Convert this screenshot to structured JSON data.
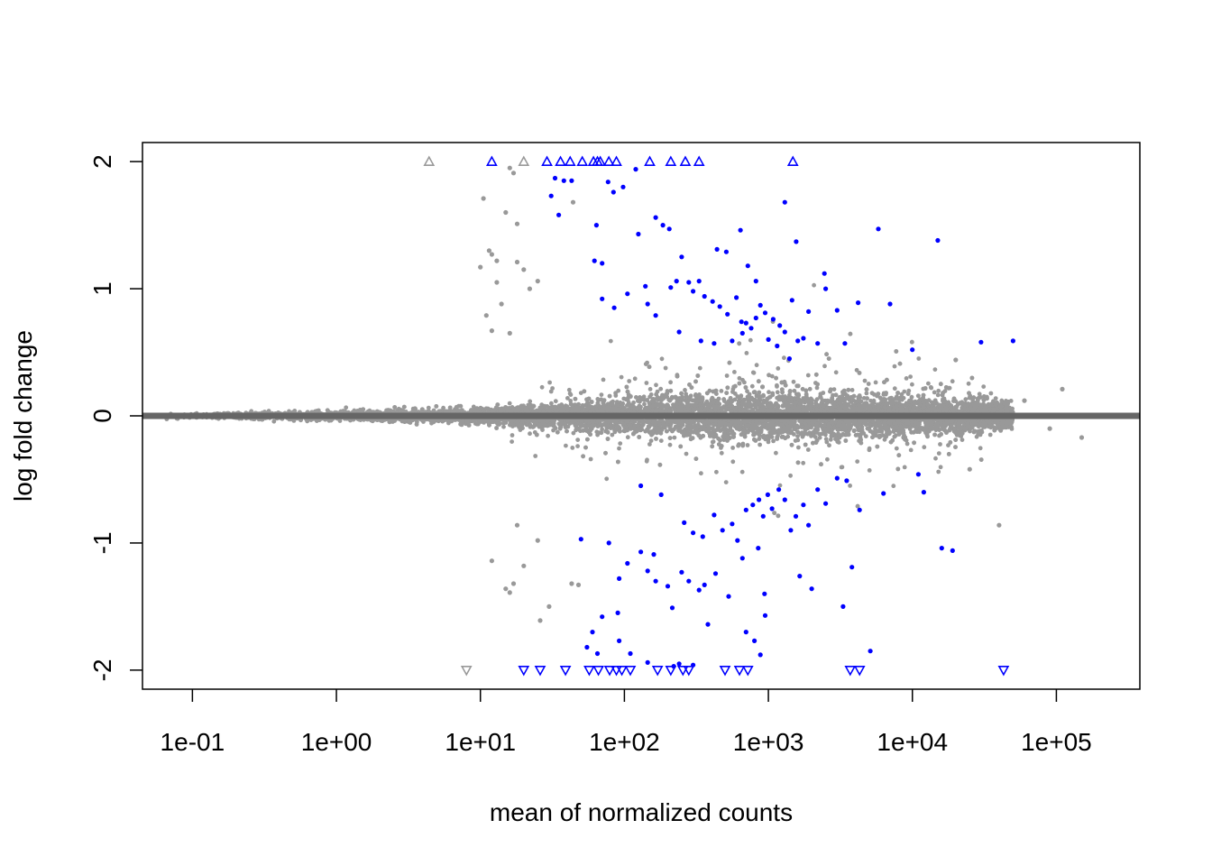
{
  "chart_data": {
    "type": "scatter",
    "xlabel": "mean of normalized counts",
    "ylabel": "log fold change",
    "x_scale": "log10",
    "xlim": [
      0.045,
      380000
    ],
    "ylim": [
      -2.15,
      2.15
    ],
    "x_ticks": [
      0.1,
      1,
      10,
      100,
      1000,
      10000,
      100000
    ],
    "x_tick_labels": [
      "1e-01",
      "1e+00",
      "1e+01",
      "1e+02",
      "1e+03",
      "1e+04",
      "1e+05"
    ],
    "y_ticks": [
      -2,
      -1,
      0,
      1,
      2
    ],
    "y_tick_labels": [
      "-2",
      "-1",
      "0",
      "1",
      "2"
    ],
    "reference_line": {
      "y": 0,
      "color": "#666666"
    },
    "colors": {
      "not_significant": "#999999",
      "significant": "#0000ff"
    },
    "grid": false,
    "series": [
      {
        "color": "#0000ff",
        "points": [
          [
            33,
            1.87
          ],
          [
            38,
            1.85
          ],
          [
            43,
            1.85
          ],
          [
            31,
            1.73
          ],
          [
            35,
            1.58
          ],
          [
            64,
            1.5
          ],
          [
            77,
            1.84
          ],
          [
            84,
            1.76
          ],
          [
            98,
            1.8
          ],
          [
            120,
            1.94
          ],
          [
            62,
            1.22
          ],
          [
            70,
            1.2
          ],
          [
            125,
            1.43
          ],
          [
            165,
            1.56
          ],
          [
            185,
            1.5
          ],
          [
            205,
            1.47
          ],
          [
            250,
            1.25
          ],
          [
            330,
            1.06
          ],
          [
            440,
            1.31
          ],
          [
            510,
            1.29
          ],
          [
            640,
            1.46
          ],
          [
            720,
            1.18
          ],
          [
            820,
            1.06
          ],
          [
            1300,
            1.68
          ],
          [
            1560,
            1.37
          ],
          [
            2450,
            1.12
          ],
          [
            5800,
            1.47
          ],
          [
            15000,
            1.38
          ],
          [
            70,
            0.92
          ],
          [
            85,
            0.85
          ],
          [
            105,
            0.96
          ],
          [
            140,
            1.02
          ],
          [
            145,
            0.88
          ],
          [
            165,
            0.79
          ],
          [
            210,
            1.01
          ],
          [
            230,
            1.06
          ],
          [
            280,
            1.05
          ],
          [
            300,
            0.98
          ],
          [
            360,
            0.94
          ],
          [
            410,
            0.9
          ],
          [
            460,
            0.86
          ],
          [
            520,
            0.8
          ],
          [
            600,
            0.93
          ],
          [
            650,
            0.74
          ],
          [
            700,
            0.73
          ],
          [
            760,
            0.69
          ],
          [
            820,
            0.77
          ],
          [
            880,
            0.87
          ],
          [
            950,
            0.81
          ],
          [
            1080,
            0.76
          ],
          [
            1200,
            0.71
          ],
          [
            1300,
            0.66
          ],
          [
            1460,
            0.91
          ],
          [
            1600,
            0.59
          ],
          [
            1750,
            0.61
          ],
          [
            1900,
            0.82
          ],
          [
            2200,
            0.57
          ],
          [
            2500,
            1.0
          ],
          [
            3000,
            0.83
          ],
          [
            3400,
            0.57
          ],
          [
            4200,
            0.89
          ],
          [
            7000,
            0.88
          ],
          [
            10000,
            0.52
          ],
          [
            30000,
            0.58
          ],
          [
            50000,
            0.59
          ],
          [
            240,
            0.66
          ],
          [
            340,
            0.59
          ],
          [
            420,
            0.57
          ],
          [
            560,
            0.59
          ],
          [
            660,
            0.65
          ],
          [
            1000,
            0.6
          ],
          [
            1150,
            0.55
          ],
          [
            1400,
            0.45
          ],
          [
            130,
            -0.55
          ],
          [
            180,
            -0.62
          ],
          [
            260,
            -0.84
          ],
          [
            300,
            -0.92
          ],
          [
            350,
            -0.95
          ],
          [
            420,
            -0.78
          ],
          [
            480,
            -0.9
          ],
          [
            560,
            -0.85
          ],
          [
            610,
            -0.98
          ],
          [
            700,
            -0.74
          ],
          [
            780,
            -0.7
          ],
          [
            860,
            -0.66
          ],
          [
            920,
            -0.79
          ],
          [
            990,
            -0.62
          ],
          [
            1060,
            -0.73
          ],
          [
            1180,
            -0.58
          ],
          [
            1300,
            -0.66
          ],
          [
            1430,
            -0.9
          ],
          [
            1550,
            -0.79
          ],
          [
            1750,
            -0.7
          ],
          [
            1900,
            -0.86
          ],
          [
            2200,
            -0.58
          ],
          [
            2500,
            -0.69
          ],
          [
            3000,
            -0.49
          ],
          [
            3500,
            -0.51
          ],
          [
            4300,
            -0.74
          ],
          [
            6300,
            -0.61
          ],
          [
            11000,
            -0.46
          ],
          [
            12000,
            -0.6
          ],
          [
            50,
            -0.97
          ],
          [
            78,
            -1.0
          ],
          [
            92,
            -1.28
          ],
          [
            105,
            -1.16
          ],
          [
            130,
            -1.07
          ],
          [
            145,
            -1.22
          ],
          [
            160,
            -1.09
          ],
          [
            165,
            -1.3
          ],
          [
            200,
            -1.34
          ],
          [
            250,
            -1.23
          ],
          [
            280,
            -1.3
          ],
          [
            330,
            -1.37
          ],
          [
            360,
            -1.33
          ],
          [
            430,
            -1.24
          ],
          [
            530,
            -1.42
          ],
          [
            660,
            -1.12
          ],
          [
            850,
            -1.04
          ],
          [
            950,
            -1.57
          ],
          [
            1650,
            -1.26
          ],
          [
            2000,
            -1.36
          ],
          [
            3800,
            -1.19
          ],
          [
            16000,
            -1.04
          ],
          [
            19000,
            -1.06
          ],
          [
            215,
            -1.51
          ],
          [
            380,
            -1.64
          ],
          [
            90,
            -1.55
          ],
          [
            70,
            -1.58
          ],
          [
            60,
            -1.7
          ],
          [
            55,
            -1.82
          ],
          [
            65,
            -1.87
          ],
          [
            92,
            -1.77
          ],
          [
            110,
            -1.87
          ],
          [
            145,
            -1.94
          ],
          [
            220,
            -1.97
          ],
          [
            240,
            -1.95
          ],
          [
            300,
            -1.96
          ],
          [
            700,
            -1.7
          ],
          [
            800,
            -1.77
          ],
          [
            880,
            -1.88
          ],
          [
            3300,
            -1.5
          ],
          [
            5100,
            -1.85
          ],
          [
            940,
            -1.4
          ]
        ]
      },
      {
        "color": "#999999",
        "points": [
          [
            44,
            1.68
          ],
          [
            16,
            1.95
          ],
          [
            17,
            1.91
          ],
          [
            10.5,
            1.71
          ],
          [
            15,
            1.6
          ],
          [
            18,
            1.51
          ],
          [
            11.5,
            1.3
          ],
          [
            12,
            1.27
          ],
          [
            13,
            1.22
          ],
          [
            10,
            1.17
          ],
          [
            18,
            1.21
          ],
          [
            20,
            1.15
          ],
          [
            25,
            1.06
          ],
          [
            13,
            1.05
          ],
          [
            22,
            1.0
          ],
          [
            11,
            0.79
          ],
          [
            14,
            0.88
          ],
          [
            12,
            0.67
          ],
          [
            16,
            0.65
          ],
          [
            -1,
            0
          ],
          [
            20,
            -1.18
          ],
          [
            12,
            -1.14
          ],
          [
            15,
            -1.36
          ],
          [
            16,
            -1.39
          ],
          [
            17,
            -1.32
          ],
          [
            26,
            -1.61
          ],
          [
            30,
            -1.5
          ],
          [
            43,
            -1.32
          ],
          [
            48,
            -1.33
          ],
          [
            25,
            -0.98
          ],
          [
            18,
            -0.86
          ],
          [
            40000,
            -0.86
          ],
          [
            150000,
            -0.17
          ],
          [
            110000,
            0.21
          ],
          [
            90000,
            -0.1
          ],
          [
            60000,
            0.12
          ],
          [
            20000,
            0.44
          ],
          [
            25000,
            -0.42
          ]
        ]
      },
      {
        "color": "#999999",
        "marker": "triangle-up",
        "points": [
          [
            4.4,
            2
          ],
          [
            20,
            2
          ]
        ]
      },
      {
        "color": "#0000ff",
        "marker": "triangle-up",
        "points": [
          [
            12,
            2
          ],
          [
            29,
            2
          ],
          [
            36,
            2
          ],
          [
            42,
            2
          ],
          [
            51,
            2
          ],
          [
            61,
            2
          ],
          [
            65,
            2
          ],
          [
            68,
            2
          ],
          [
            78,
            2
          ],
          [
            88,
            2
          ],
          [
            150,
            2
          ],
          [
            210,
            2
          ],
          [
            265,
            2
          ],
          [
            330,
            2
          ],
          [
            1480,
            2
          ]
        ]
      },
      {
        "color": "#999999",
        "marker": "triangle-down",
        "points": [
          [
            8,
            -2
          ]
        ]
      },
      {
        "color": "#0000ff",
        "marker": "triangle-down",
        "points": [
          [
            20,
            -2
          ],
          [
            26,
            -2
          ],
          [
            39,
            -2
          ],
          [
            57,
            -2
          ],
          [
            66,
            -2
          ],
          [
            79,
            -2
          ],
          [
            88,
            -2
          ],
          [
            96,
            -2
          ],
          [
            110,
            -2
          ],
          [
            170,
            -2
          ],
          [
            210,
            -2
          ],
          [
            255,
            -2
          ],
          [
            280,
            -2
          ],
          [
            500,
            -2
          ],
          [
            630,
            -2
          ],
          [
            720,
            -2
          ],
          [
            3700,
            -2
          ],
          [
            4300,
            -2
          ],
          [
            43000,
            -2
          ]
        ]
      }
    ]
  }
}
